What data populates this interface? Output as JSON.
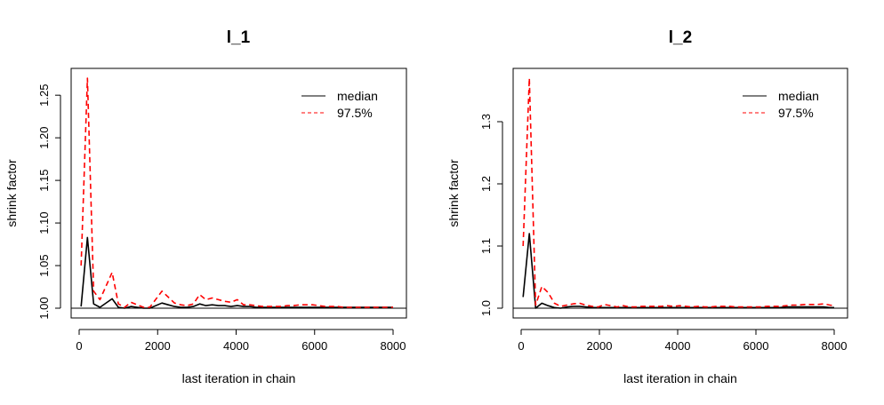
{
  "chart_data": [
    {
      "type": "line",
      "title": "l_1",
      "xlabel": "last iteration in chain",
      "ylabel": "shrink factor",
      "xlim": [
        0,
        8000
      ],
      "ylim": [
        1.0,
        1.27
      ],
      "xticks": [
        0,
        2000,
        4000,
        6000,
        8000
      ],
      "xtick_labels": [
        "0",
        "2000",
        "4000",
        "6000",
        "8000"
      ],
      "yticks": [
        1.0,
        1.05,
        1.1,
        1.15,
        1.2,
        1.25
      ],
      "ytick_labels": [
        "1.00",
        "1.05",
        "1.10",
        "1.15",
        "1.20",
        "1.25"
      ],
      "legend_position": "top-right",
      "reference_line": 1.0,
      "series": [
        {
          "name": "median",
          "style": "solid",
          "color": "#000000",
          "x": [
            50,
            210,
            370,
            530,
            840,
            1000,
            1160,
            1320,
            1480,
            1640,
            1800,
            2110,
            2270,
            2430,
            2590,
            2750,
            2910,
            3070,
            3230,
            3390,
            3550,
            3710,
            3870,
            4030,
            4190,
            4350,
            4510,
            4670,
            4830,
            4990,
            5150,
            5310,
            5470,
            5630,
            5790,
            5950,
            6110,
            6270,
            6430,
            6590,
            6750,
            6910,
            7070,
            7230,
            7390,
            7550,
            7710,
            7870,
            8000
          ],
          "y": [
            1.002,
            1.083,
            1.005,
            1.001,
            1.011,
            1.001,
            1.0,
            1.002,
            1.001,
            1.0,
            1.0,
            1.006,
            1.004,
            1.002,
            1.001,
            1.001,
            1.002,
            1.005,
            1.003,
            1.004,
            1.003,
            1.003,
            1.002,
            1.003,
            1.002,
            1.002,
            1.001,
            1.001,
            1.001,
            1.001,
            1.001,
            1.001,
            1.001,
            1.001,
            1.001,
            1.001,
            1.001,
            1.001,
            1.001,
            1.001,
            1.001,
            1.001,
            1.001,
            1.001,
            1.001,
            1.001,
            1.001,
            1.001,
            1.001
          ]
        },
        {
          "name": "97.5%",
          "style": "dashed",
          "color": "#ff0000",
          "x": [
            50,
            210,
            370,
            530,
            840,
            1000,
            1160,
            1320,
            1480,
            1640,
            1800,
            2110,
            2270,
            2430,
            2590,
            2750,
            2910,
            3070,
            3230,
            3390,
            3550,
            3710,
            3870,
            4030,
            4190,
            4350,
            4510,
            4670,
            4830,
            4990,
            5150,
            5310,
            5470,
            5630,
            5790,
            5950,
            6110,
            6270,
            6430,
            6590,
            6750,
            6910,
            7070,
            7230,
            7390,
            7550,
            7710,
            7870,
            8000
          ],
          "y": [
            1.05,
            1.27,
            1.02,
            1.01,
            1.042,
            1.005,
            1.001,
            1.007,
            1.004,
            1.001,
            1.001,
            1.02,
            1.013,
            1.006,
            1.004,
            1.003,
            1.005,
            1.016,
            1.01,
            1.012,
            1.01,
            1.008,
            1.007,
            1.01,
            1.004,
            1.004,
            1.003,
            1.002,
            1.002,
            1.002,
            1.002,
            1.003,
            1.003,
            1.004,
            1.004,
            1.004,
            1.003,
            1.002,
            1.002,
            1.002,
            1.001,
            1.001,
            1.001,
            1.001,
            1.001,
            1.001,
            1.001,
            1.001,
            1.001
          ]
        }
      ]
    },
    {
      "type": "line",
      "title": "l_2",
      "xlabel": "last iteration in chain",
      "ylabel": "shrink factor",
      "xlim": [
        0,
        8000
      ],
      "ylim": [
        1.0,
        1.37
      ],
      "xticks": [
        0,
        2000,
        4000,
        6000,
        8000
      ],
      "xtick_labels": [
        "0",
        "2000",
        "4000",
        "6000",
        "8000"
      ],
      "yticks": [
        1.0,
        1.1,
        1.2,
        1.3
      ],
      "ytick_labels": [
        "1.0",
        "1.1",
        "1.2",
        "1.3"
      ],
      "legend_position": "top-right",
      "reference_line": 1.0,
      "series": [
        {
          "name": "median",
          "style": "solid",
          "color": "#000000",
          "x": [
            50,
            210,
            370,
            530,
            690,
            850,
            1010,
            1170,
            1330,
            1490,
            1650,
            1810,
            1970,
            2130,
            2290,
            2450,
            2610,
            2770,
            2930,
            3090,
            3250,
            3410,
            3570,
            3730,
            3890,
            4050,
            4210,
            4370,
            4530,
            4690,
            4850,
            5010,
            5170,
            5330,
            5490,
            5650,
            5810,
            5970,
            6130,
            6290,
            6450,
            6610,
            6770,
            6930,
            7090,
            7250,
            7410,
            7570,
            7730,
            7890,
            8000
          ],
          "y": [
            1.018,
            1.12,
            1.0,
            1.008,
            1.004,
            1.001,
            1.0,
            1.002,
            1.003,
            1.003,
            1.002,
            1.001,
            1.001,
            1.001,
            1.001,
            1.001,
            1.001,
            1.001,
            1.001,
            1.001,
            1.001,
            1.001,
            1.001,
            1.001,
            1.001,
            1.001,
            1.001,
            1.001,
            1.001,
            1.001,
            1.001,
            1.001,
            1.001,
            1.001,
            1.001,
            1.001,
            1.001,
            1.001,
            1.001,
            1.001,
            1.001,
            1.001,
            1.002,
            1.002,
            1.002,
            1.002,
            1.002,
            1.002,
            1.002,
            1.001,
            1.001
          ]
        },
        {
          "name": "97.5%",
          "style": "dashed",
          "color": "#ff0000",
          "x": [
            50,
            210,
            370,
            530,
            690,
            850,
            1010,
            1170,
            1330,
            1490,
            1650,
            1810,
            1970,
            2130,
            2290,
            2450,
            2610,
            2770,
            2930,
            3090,
            3250,
            3410,
            3570,
            3730,
            3890,
            4050,
            4210,
            4370,
            4530,
            4690,
            4850,
            5010,
            5170,
            5330,
            5490,
            5650,
            5810,
            5970,
            6130,
            6290,
            6450,
            6610,
            6770,
            6930,
            7090,
            7250,
            7410,
            7570,
            7730,
            7890,
            8000
          ],
          "y": [
            1.1,
            1.37,
            1.005,
            1.035,
            1.025,
            1.008,
            1.003,
            1.005,
            1.007,
            1.008,
            1.005,
            1.003,
            1.002,
            1.006,
            1.004,
            1.002,
            1.004,
            1.002,
            1.002,
            1.003,
            1.003,
            1.003,
            1.003,
            1.004,
            1.003,
            1.004,
            1.003,
            1.002,
            1.003,
            1.002,
            1.002,
            1.003,
            1.003,
            1.003,
            1.002,
            1.002,
            1.002,
            1.002,
            1.002,
            1.003,
            1.003,
            1.003,
            1.004,
            1.005,
            1.005,
            1.006,
            1.006,
            1.006,
            1.007,
            1.005,
            1.004
          ]
        }
      ]
    }
  ]
}
